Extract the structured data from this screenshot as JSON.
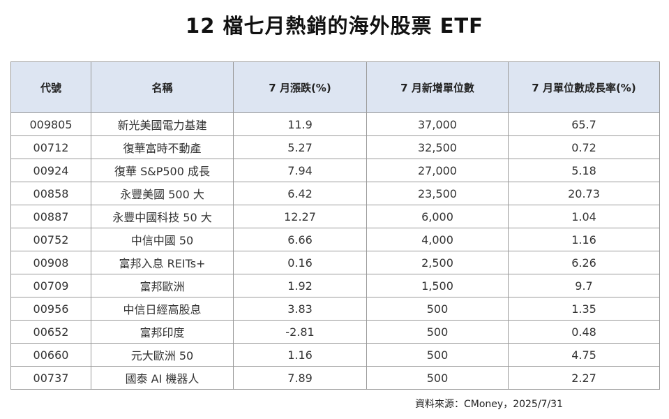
{
  "title": "12 檔七月熱銷的海外股票 ETF",
  "table": {
    "headers": [
      "代號",
      "名稱",
      "7 月漲跌(%)",
      "7 月新增單位數",
      "7 月單位數成長率(%)"
    ],
    "rows": [
      [
        "009805",
        "新光美國電力基建",
        "11.9",
        "37,000",
        "65.7"
      ],
      [
        "00712",
        "復華富時不動產",
        "5.27",
        "32,500",
        "0.72"
      ],
      [
        "00924",
        "復華 S&P500 成長",
        "7.94",
        "27,000",
        "5.18"
      ],
      [
        "00858",
        "永豐美國 500 大",
        "6.42",
        "23,500",
        "20.73"
      ],
      [
        "00887",
        "永豐中國科技 50 大",
        "12.27",
        "6,000",
        "1.04"
      ],
      [
        "00752",
        "中信中國 50",
        "6.66",
        "4,000",
        "1.16"
      ],
      [
        "00908",
        "富邦入息 REITs+",
        "0.16",
        "2,500",
        "6.26"
      ],
      [
        "00709",
        "富邦歐洲",
        "1.92",
        "1,500",
        "9.7"
      ],
      [
        "00956",
        "中信日經高股息",
        "3.83",
        "500",
        "1.35"
      ],
      [
        "00652",
        "富邦印度",
        "-2.81",
        "500",
        "0.48"
      ],
      [
        "00660",
        "元大歐洲 50",
        "1.16",
        "500",
        "4.75"
      ],
      [
        "00737",
        "國泰 AI 機器人",
        "7.89",
        "500",
        "2.27"
      ]
    ]
  },
  "source": "資料來源：CMoney，2025/7/31",
  "colors": {
    "header_bg": "#dde5f2",
    "border": "#9a9a9a"
  }
}
